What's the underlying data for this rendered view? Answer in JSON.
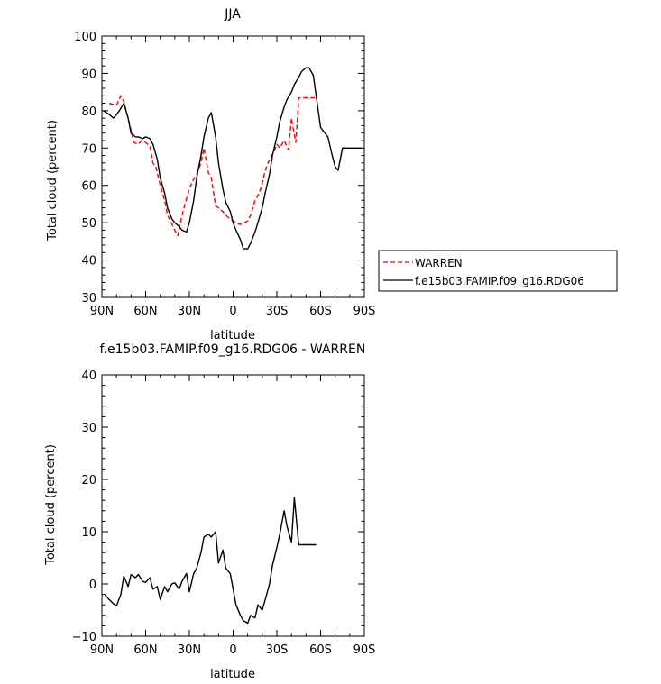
{
  "chart_data": [
    {
      "type": "line",
      "title": "JJA",
      "xlabel": "latitude",
      "ylabel": "Total cloud (percent)",
      "ylim": [
        30,
        100
      ],
      "yticks": [
        30,
        40,
        50,
        60,
        70,
        80,
        90,
        100
      ],
      "xticks": [
        "90N",
        "60N",
        "30N",
        "0",
        "30S",
        "60S",
        "90S"
      ],
      "legend": {
        "placement": "right"
      },
      "series": [
        {
          "name": "WARREN",
          "color": "#ff0000",
          "dash": "dashed",
          "x": [
            85,
            80,
            77,
            75,
            72,
            68,
            65,
            63,
            60,
            57,
            55,
            53,
            50,
            47,
            45,
            43,
            40,
            38,
            35,
            33,
            30,
            28,
            25,
            22,
            20,
            17,
            15,
            12,
            10,
            7,
            5,
            2,
            0,
            -2,
            -5,
            -8,
            -10,
            -12,
            -15,
            -18,
            -20,
            -22,
            -25,
            -28,
            -30,
            -32,
            -35,
            -38,
            -40,
            -43,
            -45,
            -48,
            -50,
            -52,
            -55,
            -57
          ],
          "y": [
            82,
            81.5,
            84,
            82.5,
            78,
            71.5,
            71,
            72,
            71.5,
            70.5,
            66,
            65,
            60,
            56,
            52,
            50.5,
            48,
            46.5,
            52,
            55,
            59,
            61,
            63,
            66,
            70,
            63.5,
            62,
            54.5,
            54,
            53,
            52,
            51,
            50.5,
            50,
            49.5,
            50,
            50.5,
            52,
            56,
            58,
            60.5,
            64,
            67,
            69,
            71,
            70,
            72,
            69.5,
            78,
            71.5,
            83.5,
            83.5,
            83.5,
            83.5,
            83.5,
            83.5
          ]
        },
        {
          "name": "f.e15b03.FAMIP.f09_g16.RDG06",
          "color": "#000000",
          "dash": "solid",
          "x": [
            89,
            85,
            82,
            78,
            75,
            72,
            70,
            67,
            65,
            62,
            60,
            57,
            55,
            52,
            50,
            47,
            45,
            42,
            40,
            37,
            35,
            32,
            30,
            27,
            25,
            22,
            20,
            17,
            15,
            12,
            10,
            7,
            5,
            2,
            0,
            -2,
            -5,
            -7,
            -10,
            -12,
            -15,
            -17,
            -20,
            -22,
            -25,
            -27,
            -30,
            -32,
            -35,
            -37,
            -40,
            -42,
            -45,
            -47,
            -50,
            -52,
            -55,
            -57,
            -60,
            -62,
            -65,
            -68,
            -70,
            -72,
            -75,
            -78,
            -80,
            -82,
            -85,
            -88
          ],
          "y": [
            80,
            79,
            78,
            80,
            82,
            78,
            74,
            73,
            73,
            72.5,
            73,
            72.5,
            71,
            67,
            62,
            58,
            54,
            51,
            50,
            49,
            48,
            47.5,
            50,
            56,
            62,
            68,
            73,
            78,
            79.5,
            73,
            66,
            59,
            55.5,
            53,
            50,
            48,
            45.5,
            43,
            43,
            44.5,
            47.5,
            50,
            54,
            58,
            63,
            68,
            73,
            77,
            81,
            83,
            85,
            87,
            89,
            90.5,
            91.5,
            91.5,
            89.5,
            84,
            75.5,
            74.5,
            73,
            68,
            65,
            64,
            70,
            70,
            70,
            70,
            70,
            70
          ]
        }
      ]
    },
    {
      "type": "line",
      "title": "f.e15b03.FAMIP.f09_g16.RDG06 - WARREN",
      "xlabel": "latitude",
      "ylabel": "Total cloud (percent)",
      "ylim": [
        -10,
        40
      ],
      "yticks": [
        -10,
        0,
        10,
        20,
        30,
        40
      ],
      "xticks": [
        "90N",
        "60N",
        "30N",
        "0",
        "30S",
        "60S",
        "90S"
      ],
      "series": [
        {
          "color": "#000000",
          "dash": "solid",
          "x": [
            88,
            85,
            82,
            80,
            77,
            75,
            72,
            70,
            67,
            65,
            62,
            60,
            57,
            55,
            52,
            50,
            47,
            45,
            42,
            40,
            37,
            35,
            32,
            30,
            27,
            25,
            22,
            20,
            17,
            15,
            12,
            10,
            7,
            5,
            2,
            0,
            -2,
            -5,
            -7,
            -10,
            -12,
            -15,
            -17,
            -20,
            -22,
            -25,
            -27,
            -30,
            -32,
            -35,
            -37,
            -40,
            -42,
            -45,
            -47,
            -50,
            -52,
            -55,
            -57
          ],
          "y": [
            -2,
            -3,
            -3.8,
            -4.2,
            -2,
            1.5,
            -0.5,
            1.8,
            1.2,
            1.8,
            0.5,
            0.3,
            1.2,
            -1,
            -0.5,
            -3,
            -0.5,
            -1.5,
            0,
            0.2,
            -1,
            0.5,
            2,
            -1.5,
            2,
            3,
            6,
            9,
            9.5,
            9,
            10,
            4,
            6.5,
            3,
            2,
            -1,
            -4,
            -6,
            -7,
            -7.5,
            -6,
            -6.5,
            -4,
            -5,
            -3,
            0,
            3.5,
            7,
            9.5,
            14,
            11,
            8,
            16.5,
            7.5,
            7.5,
            7.5,
            7.5,
            7.5,
            7.5
          ]
        }
      ]
    }
  ]
}
